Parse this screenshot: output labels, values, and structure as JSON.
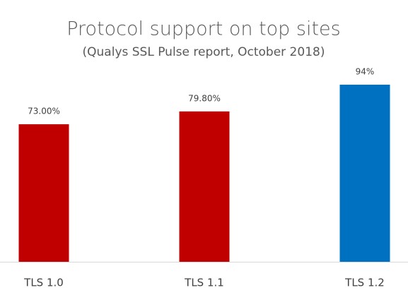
{
  "chart_data": {
    "type": "bar",
    "title": "Protocol support on top sites",
    "subtitle": "(Qualys SSL Pulse report, October 2018)",
    "categories": [
      "TLS 1.0",
      "TLS 1.1",
      "TLS 1.2"
    ],
    "values": [
      73,
      79.8,
      94
    ],
    "value_labels": [
      "73.00%",
      "79.80%",
      "94%"
    ],
    "colors": [
      "#c00000",
      "#c00000",
      "#0070c0"
    ],
    "ylim": [
      0,
      100
    ]
  }
}
